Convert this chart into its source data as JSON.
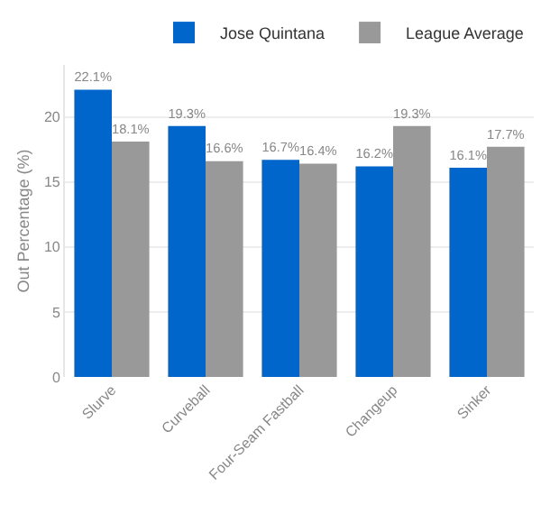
{
  "chart_data": {
    "type": "bar",
    "ylabel": "Out Percentage (%)",
    "categories": [
      "Slurve",
      "Curveball",
      "Four-Seam Fastball",
      "Changeup",
      "Sinker"
    ],
    "series": [
      {
        "name": "Jose Quintana",
        "color": "#0066cc",
        "values": [
          22.1,
          19.3,
          16.7,
          16.2,
          16.1
        ],
        "value_labels": [
          "22.1%",
          "19.3%",
          "16.7%",
          "16.2%",
          "16.1%"
        ]
      },
      {
        "name": "League Average",
        "color": "#999999",
        "values": [
          18.1,
          16.6,
          16.4,
          19.3,
          17.7
        ],
        "value_labels": [
          "18.1%",
          "16.6%",
          "16.4%",
          "19.3%",
          "17.7%"
        ]
      }
    ],
    "ylim": [
      0,
      24
    ],
    "yticks": [
      0,
      5,
      10,
      15,
      20
    ],
    "grid": "y",
    "legend": "top right"
  }
}
